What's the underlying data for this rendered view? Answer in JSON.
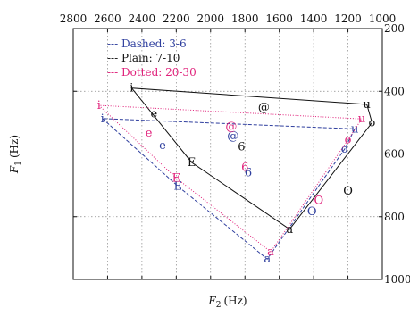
{
  "chart_data": {
    "type": "scatter",
    "xlabel": "F",
    "xlabel_sub": "2",
    "xlabel_unit": "(Hz)",
    "ylabel": "F",
    "ylabel_sub": "1",
    "ylabel_unit": "(Hz)",
    "xlim": [
      2800,
      1000
    ],
    "ylim": [
      200,
      1000
    ],
    "x_reversed": true,
    "y_reversed": true,
    "xticks": [
      2800,
      2600,
      2400,
      2200,
      2000,
      1800,
      1600,
      1400,
      1200,
      1000
    ],
    "yticks": [
      200,
      400,
      600,
      800,
      1000
    ],
    "grid": true,
    "legend_position": "top-left",
    "series": [
      {
        "name": "Dashed: 3-6",
        "legend_label": "--- Dashed: 3-6",
        "color": "#2f3f9e",
        "line_style": "dashed",
        "polygon": [
          {
            "label": "i",
            "x": 2630,
            "y": 487
          },
          {
            "label": "E",
            "x": 2190,
            "y": 703
          },
          {
            "label": "a",
            "x": 1670,
            "y": 935
          },
          {
            "label": "o",
            "x": 1220,
            "y": 585
          },
          {
            "label": "u",
            "x": 1160,
            "y": 520
          }
        ],
        "points": [
          {
            "label": "e",
            "x": 2280,
            "y": 573
          },
          {
            "label": "@",
            "x": 1870,
            "y": 543
          },
          {
            "label": "6",
            "x": 1780,
            "y": 660
          },
          {
            "label": "O",
            "x": 1410,
            "y": 783
          }
        ]
      },
      {
        "name": "Plain: 7-10",
        "legend_label": "--- Plain: 7-10",
        "color": "#111111",
        "line_style": "solid",
        "polygon": [
          {
            "label": "i",
            "x": 2460,
            "y": 390
          },
          {
            "label": "E",
            "x": 2110,
            "y": 627
          },
          {
            "label": "a",
            "x": 1540,
            "y": 840
          },
          {
            "label": "o",
            "x": 1060,
            "y": 500
          },
          {
            "label": "u",
            "x": 1090,
            "y": 442
          }
        ],
        "points": [
          {
            "label": "e",
            "x": 2330,
            "y": 472
          },
          {
            "label": "@",
            "x": 1690,
            "y": 452
          },
          {
            "label": "6",
            "x": 1820,
            "y": 577
          },
          {
            "label": "O",
            "x": 1200,
            "y": 718
          }
        ]
      },
      {
        "name": "Dotted: 20-30",
        "legend_label": "--- Dotted: 20-30",
        "color": "#e0207a",
        "line_style": "dotted",
        "polygon": [
          {
            "label": "i",
            "x": 2650,
            "y": 445
          },
          {
            "label": "E",
            "x": 2200,
            "y": 677
          },
          {
            "label": "a",
            "x": 1650,
            "y": 912
          },
          {
            "label": "o",
            "x": 1200,
            "y": 555
          },
          {
            "label": "u",
            "x": 1120,
            "y": 488
          }
        ],
        "points": [
          {
            "label": "e",
            "x": 2360,
            "y": 533
          },
          {
            "label": "@",
            "x": 1880,
            "y": 513
          },
          {
            "label": "6",
            "x": 1800,
            "y": 642
          },
          {
            "label": "O",
            "x": 1370,
            "y": 748
          }
        ]
      }
    ]
  }
}
